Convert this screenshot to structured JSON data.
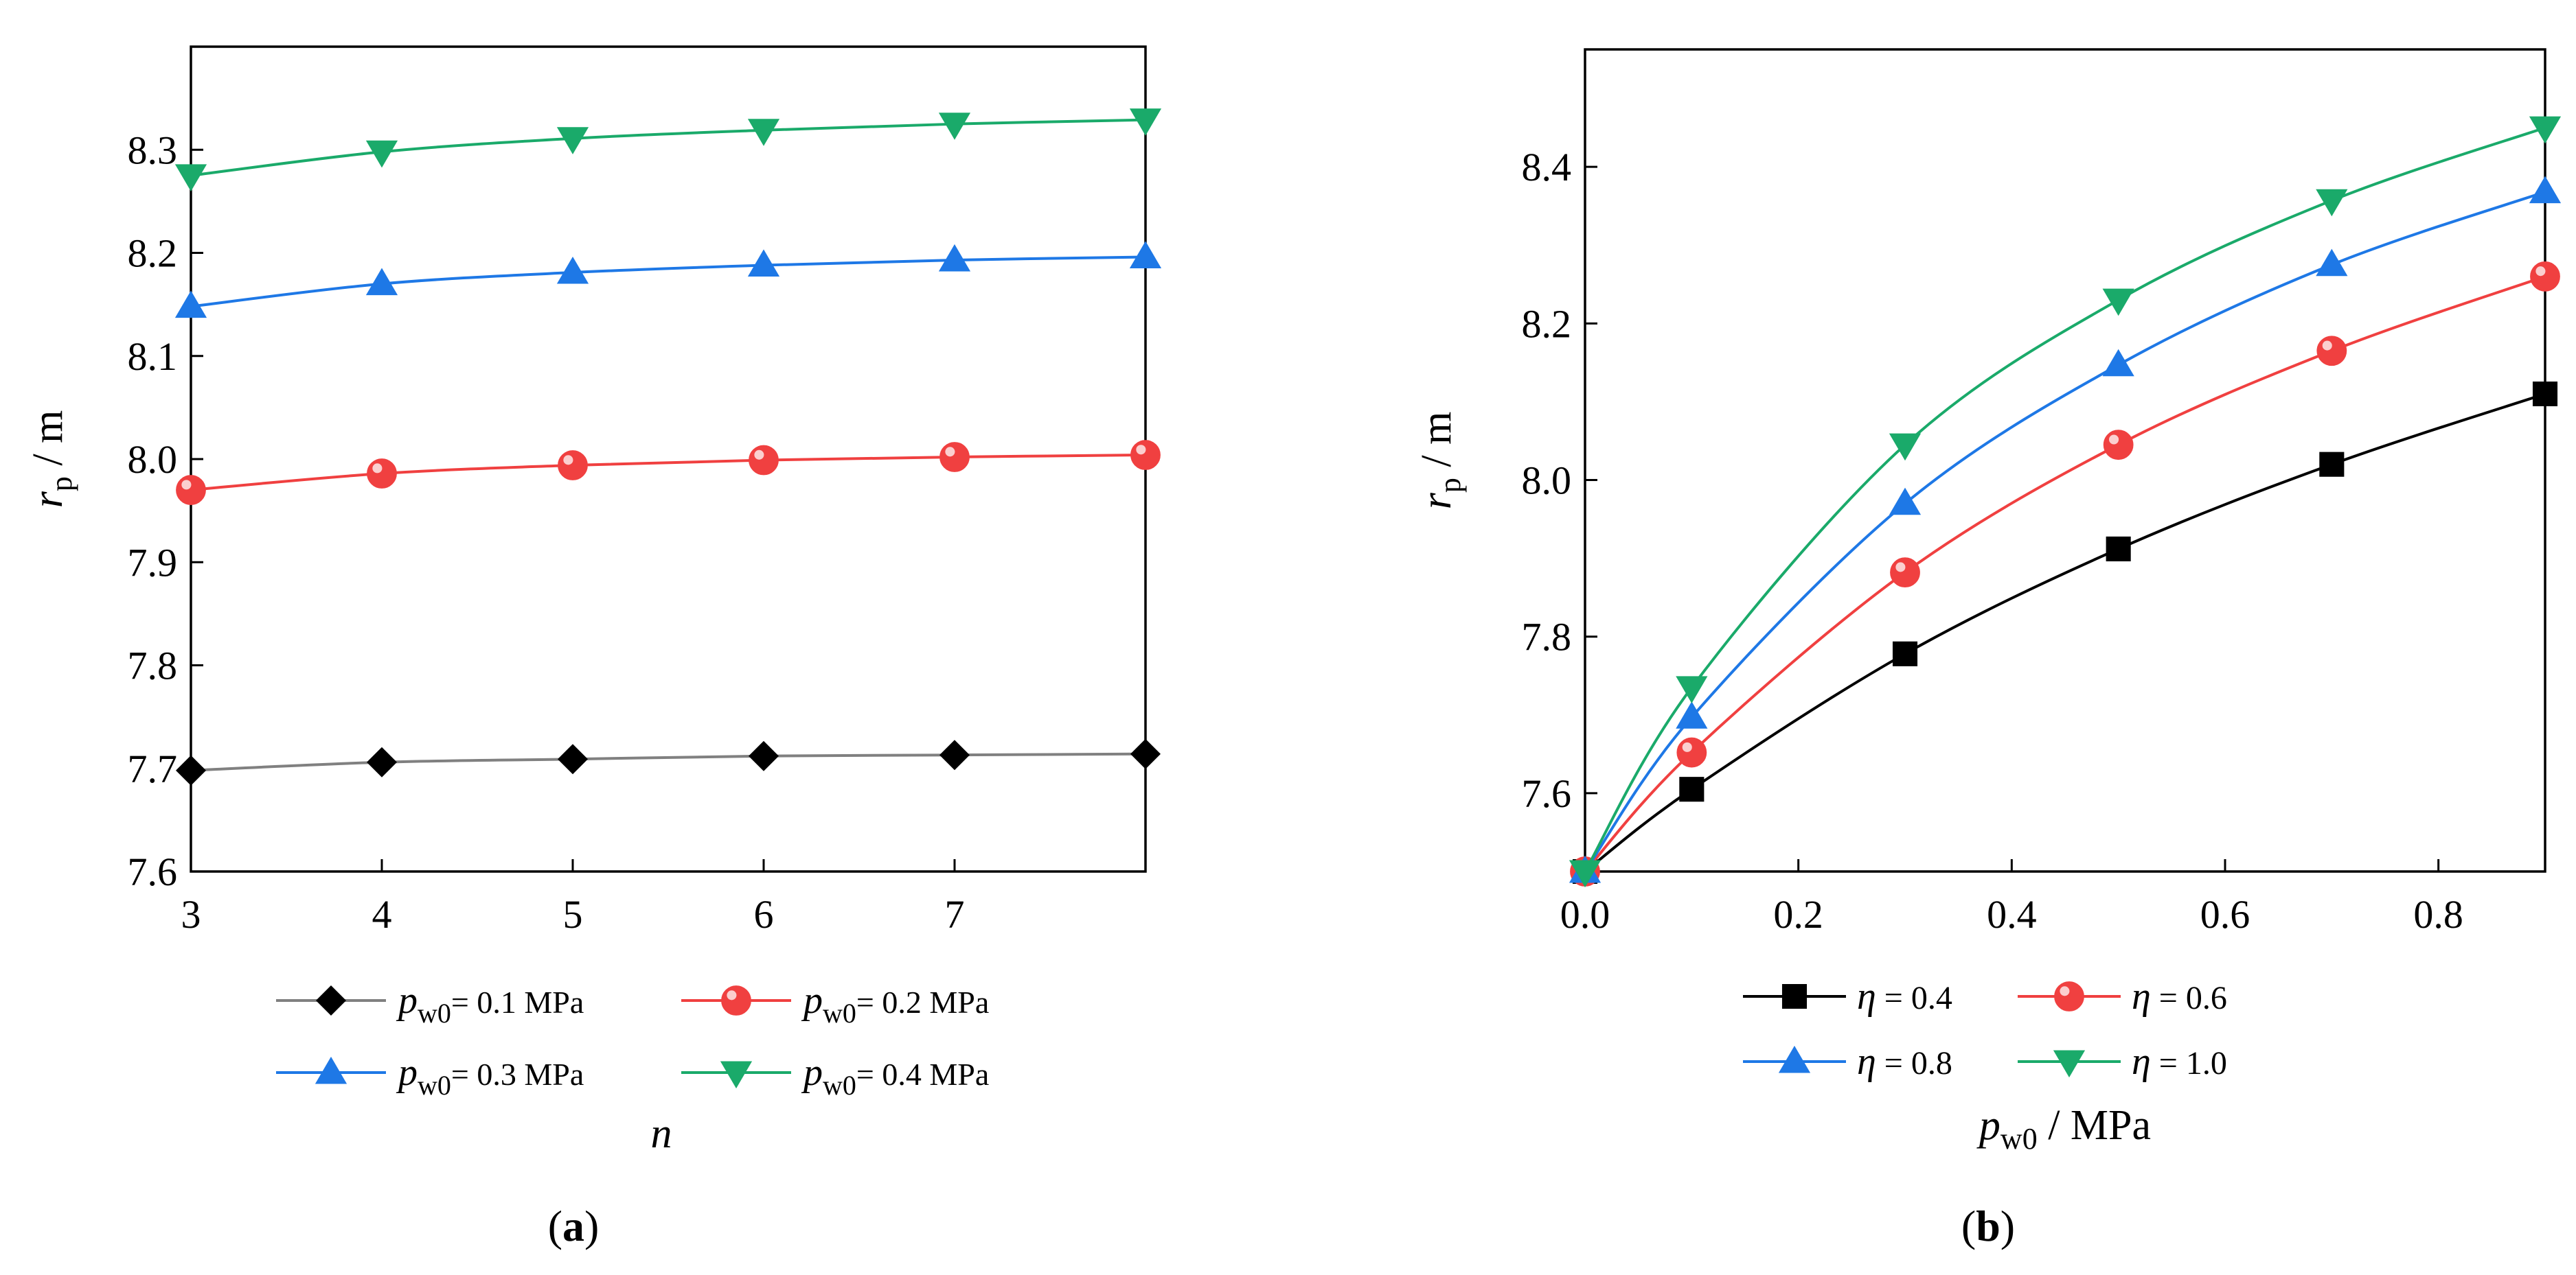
{
  "chart_data": [
    {
      "type": "line",
      "panel": "a",
      "caption_prefix": "(",
      "caption_letter": "a",
      "caption_suffix": ")",
      "xlabel": "n",
      "ylabel_main": "r",
      "ylabel_sub": "p",
      "ylabel_unit": " / m",
      "xlim": [
        3,
        8
      ],
      "ylim": [
        7.6,
        8.4
      ],
      "xticks": [
        3,
        4,
        5,
        6,
        7
      ],
      "xtick_labels": [
        "3",
        "4",
        "5",
        "6",
        "7"
      ],
      "yticks": [
        7.6,
        7.7,
        7.8,
        7.9,
        8.0,
        8.1,
        8.2,
        8.3
      ],
      "ytick_labels": [
        "7.6",
        "7.7",
        "7.8",
        "7.9",
        "8.0",
        "8.1",
        "8.2",
        "8.3"
      ],
      "legend_position": "below",
      "x": [
        3,
        4,
        5,
        6,
        7,
        8
      ],
      "series": [
        {
          "legend_main": "p",
          "legend_sub": "w0",
          "legend_rest": "= 0.1 MPa",
          "marker": "diamond",
          "color": "#000000",
          "line_color": "#808080",
          "values": [
            7.698,
            7.706,
            7.709,
            7.712,
            7.713,
            7.714
          ]
        },
        {
          "legend_main": "p",
          "legend_sub": "w0",
          "legend_rest": "= 0.2 MPa",
          "marker": "circle",
          "color": "#f04040",
          "line_color": "#f04040",
          "values": [
            7.97,
            7.986,
            7.994,
            7.999,
            8.002,
            8.004
          ]
        },
        {
          "legend_main": "p",
          "legend_sub": "w0",
          "legend_rest": "= 0.3 MPa",
          "marker": "triangle-up",
          "color": "#1e78e6",
          "line_color": "#1e78e6",
          "values": [
            8.148,
            8.17,
            8.181,
            8.188,
            8.193,
            8.196
          ]
        },
        {
          "legend_main": "p",
          "legend_sub": "w0",
          "legend_rest": "= 0.4 MPa",
          "marker": "triangle-down",
          "color": "#1aaa6a",
          "line_color": "#1aaa6a",
          "values": [
            8.275,
            8.298,
            8.311,
            8.319,
            8.325,
            8.329
          ]
        }
      ]
    },
    {
      "type": "line",
      "panel": "b",
      "caption_prefix": "(",
      "caption_letter": "b",
      "caption_suffix": ")",
      "xlabel_main": "p",
      "xlabel_sub": "w0",
      "xlabel_unit": " / MPa",
      "ylabel_main": "r",
      "ylabel_sub": "p",
      "ylabel_unit": " / m",
      "xlim": [
        0,
        0.9
      ],
      "ylim": [
        7.5,
        8.55
      ],
      "xticks": [
        0.0,
        0.2,
        0.4,
        0.6,
        0.8
      ],
      "xtick_labels": [
        "0.0",
        "0.2",
        "0.4",
        "0.6",
        "0.8"
      ],
      "yticks": [
        7.6,
        7.8,
        8.0,
        8.2,
        8.4
      ],
      "ytick_labels": [
        "7.6",
        "7.8",
        "8.0",
        "8.2",
        "8.4"
      ],
      "legend_position": "below",
      "x": [
        0.0,
        0.1,
        0.3,
        0.5,
        0.7,
        0.9
      ],
      "series": [
        {
          "legend_main": "η",
          "legend_rest": " = 0.4",
          "marker": "square",
          "color": "#000000",
          "line_color": "#000000",
          "values": [
            7.5,
            7.605,
            7.778,
            7.912,
            8.02,
            8.11
          ]
        },
        {
          "legend_main": "η",
          "legend_rest": " = 0.6",
          "marker": "circle",
          "color": "#f04040",
          "line_color": "#f04040",
          "values": [
            7.5,
            7.652,
            7.882,
            8.045,
            8.165,
            8.26
          ]
        },
        {
          "legend_main": "η",
          "legend_rest": " = 0.8",
          "marker": "triangle-up",
          "color": "#1e78e6",
          "line_color": "#1e78e6",
          "values": [
            7.5,
            7.697,
            7.97,
            8.147,
            8.275,
            8.368
          ]
        },
        {
          "legend_main": "η",
          "legend_rest": " = 1.0",
          "marker": "triangle-down",
          "color": "#1aaa6a",
          "line_color": "#1aaa6a",
          "values": [
            7.5,
            7.735,
            8.045,
            8.23,
            8.357,
            8.45
          ]
        }
      ]
    }
  ]
}
